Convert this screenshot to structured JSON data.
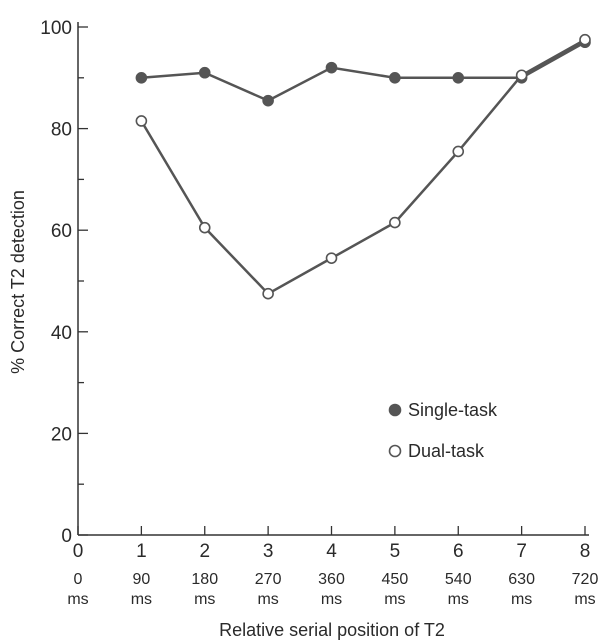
{
  "chart_data": {
    "type": "line",
    "xlabel": "Relative serial position of T2",
    "ylabel": "% Correct T2 detection",
    "x": [
      1,
      2,
      3,
      4,
      5,
      6,
      7,
      8
    ],
    "xlim": [
      0,
      8
    ],
    "ylim": [
      0,
      100
    ],
    "x_ticks": [
      "0",
      "1",
      "2",
      "3",
      "4",
      "5",
      "6",
      "7",
      "8"
    ],
    "x_tick_ms": [
      "0",
      "90",
      "180",
      "270",
      "360",
      "450",
      "540",
      "630",
      "720"
    ],
    "ms_unit": "ms",
    "y_ticks": [
      "0",
      "20",
      "40",
      "60",
      "80",
      "100"
    ],
    "grid": false,
    "legend_position": "lower-right",
    "series": [
      {
        "name": "Single-task",
        "marker": "filled-circle",
        "color": "#555555",
        "values": [
          90,
          91,
          85.5,
          92,
          90,
          90,
          90,
          97
        ]
      },
      {
        "name": "Dual-task",
        "marker": "open-circle",
        "color": "#555555",
        "values": [
          81.5,
          60.5,
          47.5,
          54.5,
          61.5,
          75.5,
          90.5,
          97.5
        ]
      }
    ]
  }
}
